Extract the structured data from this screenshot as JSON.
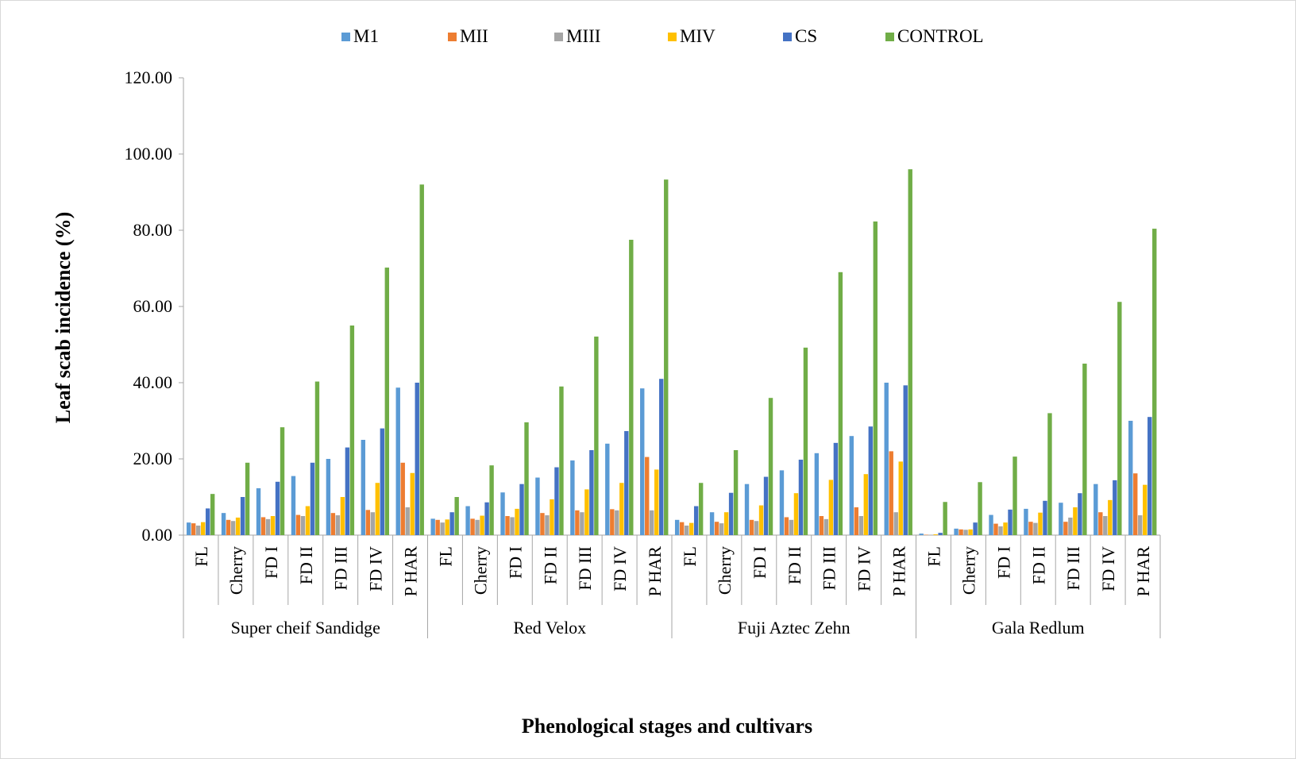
{
  "chart_data": {
    "type": "bar",
    "title": "",
    "xlabel": "Phenological stages and  cultivars",
    "ylabel": "Leaf  scab  incidence (%)",
    "ylim": [
      0,
      120
    ],
    "yticks": [
      "0.00",
      "20.00",
      "40.00",
      "60.00",
      "80.00",
      "100.00",
      "120.00"
    ],
    "grid": false,
    "legend_position": "top",
    "stages": [
      "FL",
      "Cherry",
      "FD I",
      "FD II",
      "FD III",
      "FD IV",
      "P HAR"
    ],
    "groups": [
      "Super cheif Sandidge",
      "Red Velox",
      "Fuji Aztec Zehn",
      "Gala Redlum"
    ],
    "series": [
      {
        "name": "M1",
        "color": "#5b9bd5",
        "values": [
          3.3,
          5.8,
          12.3,
          15.5,
          20,
          25,
          38.7,
          4.3,
          7.6,
          11.2,
          15.1,
          19.6,
          24,
          38.5,
          4,
          6,
          13.4,
          17,
          21.5,
          26,
          40,
          0.4,
          1.7,
          5.3,
          6.9,
          8.5,
          13.4,
          30
        ]
      },
      {
        "name": "MII",
        "color": "#ed7d31",
        "values": [
          3.1,
          4,
          4.7,
          5.3,
          5.8,
          6.6,
          19,
          4,
          4.3,
          5,
          5.8,
          6.5,
          6.8,
          20.5,
          3.4,
          3.5,
          4,
          4.7,
          5,
          7.3,
          22,
          0.1,
          1.5,
          3,
          3.5,
          3.5,
          6,
          16.2
        ]
      },
      {
        "name": "MIII",
        "color": "#a5a5a5",
        "values": [
          2.5,
          3.7,
          4.2,
          5,
          5.2,
          6,
          7.3,
          3.3,
          4,
          4.7,
          5.2,
          6,
          6.5,
          6.5,
          2.5,
          3.1,
          3.7,
          4,
          4.2,
          5,
          6,
          0.1,
          1.4,
          2.3,
          3.2,
          4.6,
          5,
          5.2
        ]
      },
      {
        "name": "MIV",
        "color": "#ffc000",
        "values": [
          3.4,
          4.6,
          5,
          7.6,
          10,
          13.7,
          16.3,
          4.1,
          5.1,
          6.9,
          9.4,
          12,
          13.7,
          17.2,
          3.2,
          6,
          7.8,
          11,
          14.5,
          16,
          19.3,
          0.2,
          1.5,
          3.3,
          5.9,
          7.3,
          9.2,
          13.2
        ]
      },
      {
        "name": "CS",
        "color": "#4472c4",
        "values": [
          7,
          10,
          14,
          19,
          23,
          28,
          40,
          6,
          8.6,
          13.4,
          17.8,
          22.3,
          27.3,
          41,
          7.6,
          11.1,
          15.3,
          19.8,
          24.2,
          28.5,
          39.3,
          0.6,
          3.3,
          6.7,
          9,
          11,
          14.4,
          31
        ]
      },
      {
        "name": "CONTROL",
        "color": "#70ad47",
        "values": [
          10.8,
          19,
          28.3,
          40.3,
          55,
          70.2,
          92,
          10,
          18.3,
          29.6,
          39,
          52.1,
          77.5,
          93.3,
          13.7,
          22.3,
          36,
          49.2,
          69,
          82.3,
          96,
          8.7,
          13.9,
          20.6,
          32,
          45,
          61.2,
          80.4
        ]
      }
    ]
  }
}
